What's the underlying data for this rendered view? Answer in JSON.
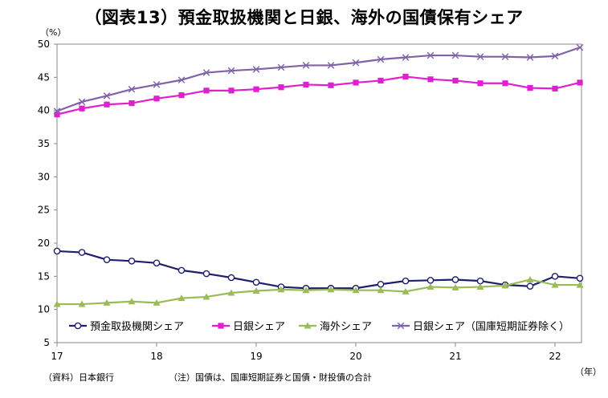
{
  "title": "（図表13）預金取扱機関と日銀、海外の国債保有シェア",
  "y_unit": "（%）",
  "x_unit": "（年）",
  "source": "（資料）日本銀行",
  "note": "（注）国債は、国庫短期証券と国債・財投債の合計",
  "chart_data": {
    "type": "line",
    "title": "（図表13）預金取扱機関と日銀、海外の国債保有シェア",
    "ylim": [
      5,
      50
    ],
    "yticks": [
      5,
      10,
      15,
      20,
      25,
      30,
      35,
      40,
      45,
      50
    ],
    "xlim": [
      2017,
      2022.4
    ],
    "xticks": [
      "17",
      "18",
      "19",
      "20",
      "21",
      "22"
    ],
    "grid": false,
    "legend_position": "bottom-inside",
    "x": [
      2017.0,
      2017.25,
      2017.5,
      2017.75,
      2018.0,
      2018.25,
      2018.5,
      2018.75,
      2019.0,
      2019.25,
      2019.5,
      2019.75,
      2020.0,
      2020.25,
      2020.5,
      2020.75,
      2021.0,
      2021.25,
      2021.5,
      2021.75,
      2022.0,
      2022.25
    ],
    "series": [
      {
        "name": "預金取扱機関シェア",
        "color": "#1f1f6e",
        "marker": "open-circle",
        "values": [
          18.8,
          18.6,
          17.5,
          17.3,
          17.0,
          15.9,
          15.4,
          14.8,
          14.1,
          13.4,
          13.2,
          13.2,
          13.2,
          13.8,
          14.3,
          14.4,
          14.5,
          14.3,
          13.7,
          13.5,
          15.0,
          14.7
        ]
      },
      {
        "name": "日銀シェア",
        "color": "#e020d0",
        "marker": "square",
        "values": [
          39.4,
          40.3,
          40.9,
          41.1,
          41.8,
          42.3,
          43.0,
          43.0,
          43.2,
          43.5,
          43.9,
          43.8,
          44.2,
          44.5,
          45.1,
          44.7,
          44.5,
          44.1,
          44.1,
          43.4,
          43.3,
          44.2
        ]
      },
      {
        "name": "海外シェア",
        "color": "#9bbb59",
        "marker": "triangle",
        "values": [
          10.8,
          10.8,
          11.0,
          11.2,
          11.0,
          11.7,
          11.9,
          12.5,
          12.8,
          13.0,
          12.9,
          13.0,
          12.9,
          12.9,
          12.7,
          13.4,
          13.3,
          13.4,
          13.6,
          14.5,
          13.7,
          13.7
        ]
      },
      {
        "name": "日銀シェア（国庫短期証券除く）",
        "color": "#7f62a8",
        "marker": "x",
        "values": [
          39.9,
          41.3,
          42.2,
          43.2,
          43.9,
          44.6,
          45.7,
          46.0,
          46.2,
          46.5,
          46.8,
          46.8,
          47.2,
          47.7,
          48.0,
          48.3,
          48.3,
          48.1,
          48.1,
          48.0,
          48.2,
          49.5
        ]
      }
    ]
  }
}
